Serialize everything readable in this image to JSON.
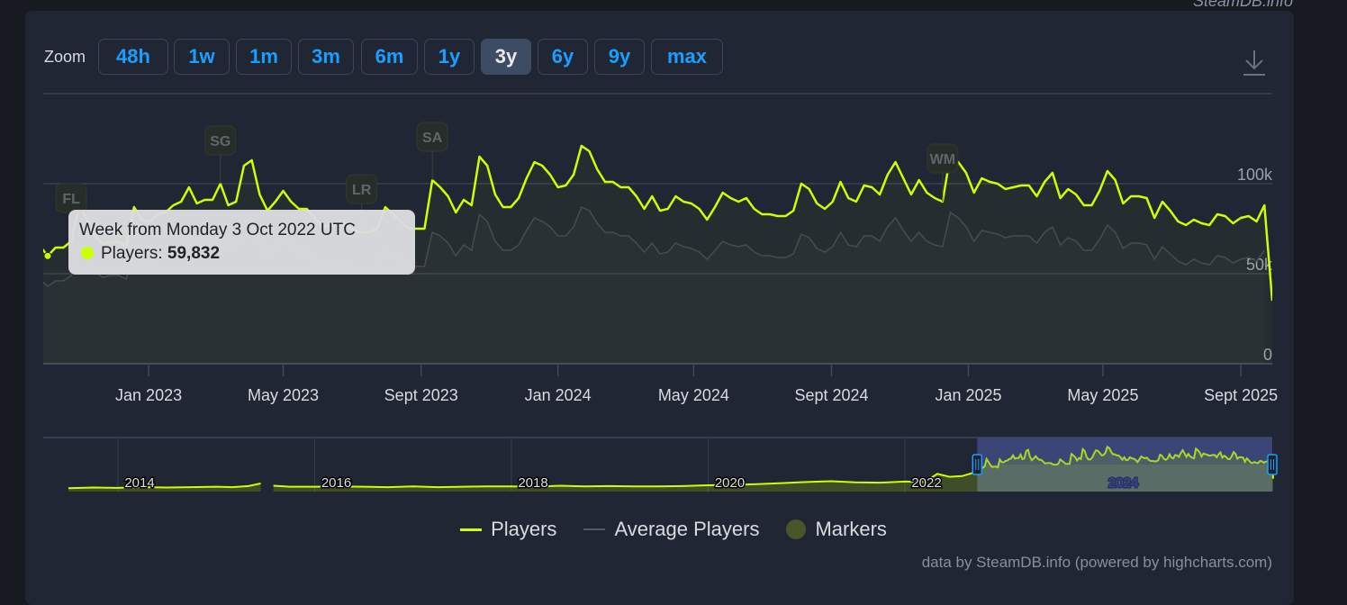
{
  "brand_text": "SteamDB.info",
  "zoom": {
    "label": "Zoom",
    "buttons": [
      "48h",
      "1w",
      "1m",
      "3m",
      "6m",
      "1y",
      "3y",
      "6y",
      "9y",
      "max"
    ],
    "active": "3y"
  },
  "download_icon": "download-icon",
  "tooltip": {
    "title": "Week from Monday 3 Oct 2022 UTC",
    "series_label": "Players:",
    "value": "59,832"
  },
  "legend": [
    {
      "label": "Players",
      "color": "#ccff00",
      "symbol": "line"
    },
    {
      "label": "Average Players",
      "color": "#555b66",
      "symbol": "line"
    },
    {
      "label": "Markers",
      "color": "#4a5528",
      "symbol": "circle"
    }
  ],
  "credits": "data by SteamDB.info (powered by highcharts.com)",
  "chart_data": {
    "type": "line",
    "title": "",
    "xlabel": "",
    "ylabel": "",
    "xlim": [
      "2022-09-29",
      "2025-09-29"
    ],
    "ylim": [
      0,
      150000
    ],
    "grid": true,
    "y_ticks": [
      {
        "value": 0,
        "label": "0"
      },
      {
        "value": 50000,
        "label": "50k"
      },
      {
        "value": 100000,
        "label": "100k"
      },
      {
        "value": 150000,
        "label": ""
      }
    ],
    "x_ticks": [
      {
        "date": "2023-01-01",
        "label": "Jan 2023"
      },
      {
        "date": "2023-05-01",
        "label": "May 2023"
      },
      {
        "date": "2023-09-01",
        "label": "Sept 2023"
      },
      {
        "date": "2024-01-01",
        "label": "Jan 2024"
      },
      {
        "date": "2024-05-01",
        "label": "May 2024"
      },
      {
        "date": "2024-09-01",
        "label": "Sept 2024"
      },
      {
        "date": "2025-01-01",
        "label": "Jan 2025"
      },
      {
        "date": "2025-05-01",
        "label": "May 2025"
      },
      {
        "date": "2025-09-01",
        "label": "Sept 2025"
      }
    ],
    "x": [
      "2022-09-26",
      "2022-10-03",
      "2022-10-10",
      "2022-10-17",
      "2022-10-24",
      "2022-10-31",
      "2022-11-07",
      "2022-11-14",
      "2022-11-21",
      "2022-11-28",
      "2022-12-05",
      "2022-12-12",
      "2022-12-19",
      "2022-12-26",
      "2023-01-02",
      "2023-01-09",
      "2023-01-16",
      "2023-01-23",
      "2023-01-30",
      "2023-02-06",
      "2023-02-13",
      "2023-02-20",
      "2023-02-27",
      "2023-03-06",
      "2023-03-13",
      "2023-03-20",
      "2023-03-27",
      "2023-04-03",
      "2023-04-10",
      "2023-04-17",
      "2023-04-24",
      "2023-05-01",
      "2023-05-08",
      "2023-05-15",
      "2023-05-22",
      "2023-05-29",
      "2023-06-05",
      "2023-06-12",
      "2023-06-19",
      "2023-06-26",
      "2023-07-03",
      "2023-07-10",
      "2023-07-17",
      "2023-07-24",
      "2023-07-31",
      "2023-08-07",
      "2023-08-14",
      "2023-08-21",
      "2023-08-28",
      "2023-09-04",
      "2023-09-11",
      "2023-09-18",
      "2023-09-25",
      "2023-10-02",
      "2023-10-09",
      "2023-10-16",
      "2023-10-23",
      "2023-10-30",
      "2023-11-06",
      "2023-11-13",
      "2023-11-20",
      "2023-11-27",
      "2023-12-04",
      "2023-12-11",
      "2023-12-18",
      "2023-12-25",
      "2024-01-01",
      "2024-01-08",
      "2024-01-15",
      "2024-01-22",
      "2024-01-29",
      "2024-02-05",
      "2024-02-12",
      "2024-02-19",
      "2024-02-26",
      "2024-03-04",
      "2024-03-11",
      "2024-03-18",
      "2024-03-25",
      "2024-04-01",
      "2024-04-08",
      "2024-04-15",
      "2024-04-22",
      "2024-04-29",
      "2024-05-06",
      "2024-05-13",
      "2024-05-20",
      "2024-05-27",
      "2024-06-03",
      "2024-06-10",
      "2024-06-17",
      "2024-06-24",
      "2024-07-01",
      "2024-07-08",
      "2024-07-15",
      "2024-07-22",
      "2024-07-29",
      "2024-08-05",
      "2024-08-12",
      "2024-08-19",
      "2024-08-26",
      "2024-09-02",
      "2024-09-09",
      "2024-09-16",
      "2024-09-23",
      "2024-09-30",
      "2024-10-07",
      "2024-10-14",
      "2024-10-21",
      "2024-10-28",
      "2024-11-04",
      "2024-11-11",
      "2024-11-18",
      "2024-11-25",
      "2024-12-02",
      "2024-12-09",
      "2024-12-16",
      "2024-12-23",
      "2024-12-30",
      "2025-01-06",
      "2025-01-13",
      "2025-01-20",
      "2025-01-27",
      "2025-02-03",
      "2025-02-10",
      "2025-02-17",
      "2025-02-24",
      "2025-03-03",
      "2025-03-10",
      "2025-03-17",
      "2025-03-24",
      "2025-03-31",
      "2025-04-07",
      "2025-04-14",
      "2025-04-21",
      "2025-04-28",
      "2025-05-05",
      "2025-05-12",
      "2025-05-19",
      "2025-05-26",
      "2025-06-02",
      "2025-06-09",
      "2025-06-16",
      "2025-06-23",
      "2025-06-30",
      "2025-07-07",
      "2025-07-14",
      "2025-07-21",
      "2025-07-28",
      "2025-08-04",
      "2025-08-11",
      "2025-08-18",
      "2025-08-25",
      "2025-09-01",
      "2025-09-08",
      "2025-09-15",
      "2025-09-22",
      "2025-09-29"
    ],
    "series": [
      {
        "name": "Players",
        "color": "#ccff00",
        "values": [
          65500,
          59832,
          64500,
          64500,
          68000,
          88000,
          80000,
          71500,
          66500,
          67500,
          67500,
          65500,
          87000,
          80000,
          79000,
          83000,
          84000,
          88000,
          90000,
          98000,
          89000,
          91000,
          91000,
          100000,
          88000,
          90000,
          110000,
          113000,
          94000,
          85000,
          90000,
          96000,
          90000,
          86000,
          86000,
          81000,
          76000,
          77000,
          77000,
          77000,
          74000,
          73000,
          73000,
          75000,
          87000,
          83000,
          79000,
          75000,
          75000,
          75000,
          102000,
          98000,
          93000,
          84000,
          91000,
          88000,
          115000,
          110000,
          94000,
          87000,
          87000,
          92000,
          103000,
          112000,
          110000,
          105000,
          98000,
          99000,
          105000,
          121000,
          118000,
          108000,
          101000,
          101000,
          98000,
          98000,
          93000,
          86000,
          93000,
          85000,
          86000,
          93000,
          90000,
          89000,
          86000,
          80000,
          87000,
          95000,
          92000,
          90000,
          92000,
          86000,
          83000,
          83000,
          82000,
          82000,
          85000,
          100000,
          97000,
          89000,
          86000,
          90000,
          101000,
          92000,
          90000,
          99000,
          98000,
          94000,
          105000,
          112000,
          103000,
          94000,
          102000,
          95000,
          92000,
          90000,
          116000,
          112000,
          106000,
          95000,
          103000,
          101000,
          100000,
          97000,
          98000,
          99000,
          99000,
          93000,
          101000,
          106000,
          92000,
          97000,
          94000,
          88000,
          88000,
          96000,
          107000,
          102000,
          89000,
          93000,
          93000,
          92000,
          81000,
          90000,
          85000,
          79000,
          77000,
          80000,
          78000,
          77000,
          83000,
          82000,
          78000,
          81000,
          82000,
          79000,
          88000,
          35000
        ]
      },
      {
        "name": "Average Players",
        "color": "#555b66",
        "values": [
          47000,
          43000,
          46000,
          46000,
          49000,
          63000,
          58000,
          51000,
          48000,
          49000,
          49000,
          47000,
          63000,
          58000,
          57000,
          60000,
          60000,
          63000,
          65000,
          71000,
          64000,
          66000,
          66000,
          72000,
          63000,
          65000,
          79000,
          81000,
          68000,
          61000,
          65000,
          69000,
          65000,
          62000,
          62000,
          58000,
          55000,
          55000,
          55000,
          55000,
          53000,
          53000,
          53000,
          54000,
          63000,
          60000,
          57000,
          54000,
          54000,
          54000,
          73000,
          71000,
          67000,
          60000,
          66000,
          63000,
          83000,
          79000,
          68000,
          63000,
          63000,
          66000,
          74000,
          81000,
          79000,
          76000,
          71000,
          71000,
          76000,
          87000,
          85000,
          78000,
          73000,
          73000,
          71000,
          71000,
          67000,
          62000,
          67000,
          61000,
          62000,
          67000,
          65000,
          64000,
          62000,
          58000,
          63000,
          68000,
          66000,
          65000,
          66000,
          62000,
          60000,
          60000,
          59000,
          59000,
          61000,
          72000,
          70000,
          64000,
          62000,
          65000,
          73000,
          66000,
          65000,
          71000,
          71000,
          68000,
          76000,
          81000,
          74000,
          68000,
          73000,
          68000,
          66000,
          65000,
          84000,
          81000,
          76000,
          68000,
          74000,
          73000,
          72000,
          70000,
          71000,
          71000,
          71000,
          67000,
          73000,
          76000,
          66000,
          70000,
          68000,
          63000,
          63000,
          69000,
          77000,
          73000,
          64000,
          67000,
          67000,
          66000,
          58000,
          65000,
          61000,
          57000,
          55000,
          58000,
          56000,
          55000,
          60000,
          59000,
          56000,
          58000,
          59000,
          57000,
          63000,
          null
        ]
      }
    ],
    "markers": [
      {
        "label": "FL",
        "date": "2022-10-24"
      },
      {
        "label": "SG",
        "date": "2023-03-06"
      },
      {
        "label": "LR",
        "date": "2023-07-10"
      },
      {
        "label": "SA",
        "date": "2023-09-11"
      },
      {
        "label": "WM",
        "date": "2024-12-09"
      }
    ],
    "navigator": {
      "year_labels": [
        "2014",
        "2016",
        "2018",
        "2020",
        "2022",
        "2024"
      ],
      "selected_range": [
        "2022-09-26",
        "2025-09-29"
      ],
      "history": [
        [
          [
            "2013-07-01",
            9000
          ],
          [
            "2013-10-01",
            11000
          ],
          [
            "2014-01-01",
            10000
          ],
          [
            "2014-04-01",
            12000
          ],
          [
            "2014-07-01",
            11000
          ],
          [
            "2014-10-01",
            12000
          ],
          [
            "2015-01-01",
            13000
          ],
          [
            "2015-03-01",
            12000
          ],
          [
            "2015-05-01",
            15000
          ],
          [
            "2015-06-15",
            22000
          ]
        ],
        [
          [
            "2015-08-01",
            16000
          ],
          [
            "2015-10-01",
            13000
          ],
          [
            "2016-01-01",
            13000
          ],
          [
            "2016-04-01",
            14000
          ],
          [
            "2016-07-01",
            13000
          ],
          [
            "2016-10-01",
            12000
          ],
          [
            "2017-01-01",
            14000
          ],
          [
            "2017-04-01",
            12000
          ],
          [
            "2017-07-01",
            13000
          ],
          [
            "2017-10-01",
            14000
          ],
          [
            "2018-01-01",
            14000
          ],
          [
            "2018-04-01",
            13000
          ],
          [
            "2018-07-01",
            16000
          ],
          [
            "2018-10-01",
            14000
          ],
          [
            "2019-01-01",
            15000
          ],
          [
            "2019-04-01",
            14000
          ],
          [
            "2019-07-01",
            14000
          ],
          [
            "2019-10-01",
            15000
          ],
          [
            "2020-01-01",
            17000
          ],
          [
            "2020-04-01",
            18000
          ],
          [
            "2020-07-01",
            20000
          ],
          [
            "2020-10-01",
            23000
          ],
          [
            "2021-01-01",
            26000
          ],
          [
            "2021-04-01",
            28000
          ],
          [
            "2021-07-01",
            25000
          ],
          [
            "2021-10-01",
            24000
          ],
          [
            "2022-01-01",
            27000
          ],
          [
            "2022-03-15",
            26000
          ],
          [
            "2022-05-01",
            48000
          ],
          [
            "2022-06-15",
            40000
          ],
          [
            "2022-08-01",
            42000
          ],
          [
            "2022-09-26",
            54000
          ]
        ]
      ]
    }
  }
}
